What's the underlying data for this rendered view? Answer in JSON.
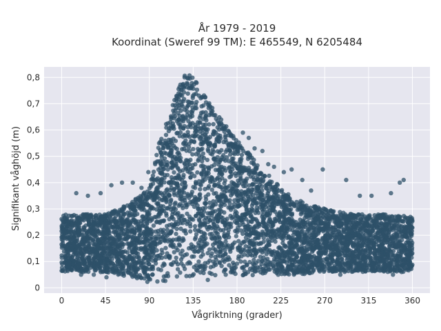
{
  "chart_data": {
    "type": "scatter",
    "title_line1": "År 1979 - 2019",
    "title_line2": "Koordinat (Sweref 99 TM): E 465549, N 6205484",
    "xlabel": "Vågriktning (grader)",
    "ylabel": "Signifikant våghöjd (m)",
    "xlim": [
      -18,
      378
    ],
    "ylim": [
      -0.02,
      0.84
    ],
    "grid": true,
    "legend": "none",
    "x_ticks": [
      0,
      45,
      90,
      135,
      180,
      225,
      270,
      315,
      360
    ],
    "x_tick_labels": [
      "0",
      "45",
      "90",
      "135",
      "180",
      "225",
      "270",
      "315",
      "360"
    ],
    "y_ticks": [
      0,
      0.1,
      0.2,
      0.3,
      0.4,
      0.5,
      0.6,
      0.7,
      0.8
    ],
    "y_tick_labels": [
      "0",
      "0,1",
      "0,2",
      "0,3",
      "0,4",
      "0,5",
      "0,6",
      "0,7",
      "0,8"
    ],
    "colors": {
      "marker": "#2e5068",
      "plot_bg": "#e6e6ef",
      "grid": "#ffffff"
    },
    "envelope": {
      "x": [
        0,
        20,
        45,
        70,
        90,
        100,
        110,
        120,
        125,
        130,
        135,
        150,
        165,
        180,
        195,
        210,
        225,
        245,
        270,
        300,
        330,
        360
      ],
      "ymax": [
        0.28,
        0.28,
        0.28,
        0.32,
        0.38,
        0.55,
        0.65,
        0.76,
        0.81,
        0.81,
        0.8,
        0.72,
        0.64,
        0.56,
        0.5,
        0.44,
        0.38,
        0.33,
        0.3,
        0.28,
        0.28,
        0.27
      ],
      "ymin": [
        0.06,
        0.06,
        0.06,
        0.04,
        0.02,
        0.02,
        0.03,
        0.04,
        0.04,
        0.04,
        0.04,
        0.04,
        0.04,
        0.04,
        0.04,
        0.05,
        0.05,
        0.05,
        0.06,
        0.06,
        0.06,
        0.06
      ]
    },
    "outliers": [
      [
        15,
        0.36
      ],
      [
        27,
        0.35
      ],
      [
        40,
        0.36
      ],
      [
        51,
        0.39
      ],
      [
        62,
        0.4
      ],
      [
        73,
        0.4
      ],
      [
        82,
        0.38
      ],
      [
        89,
        0.44
      ],
      [
        96,
        0.47
      ],
      [
        100,
        0.55
      ],
      [
        106,
        0.55
      ],
      [
        186,
        0.59
      ],
      [
        192,
        0.57
      ],
      [
        198,
        0.53
      ],
      [
        206,
        0.52
      ],
      [
        212,
        0.47
      ],
      [
        218,
        0.46
      ],
      [
        228,
        0.44
      ],
      [
        236,
        0.45
      ],
      [
        247,
        0.41
      ],
      [
        256,
        0.37
      ],
      [
        268,
        0.45
      ],
      [
        292,
        0.41
      ],
      [
        306,
        0.35
      ],
      [
        318,
        0.35
      ],
      [
        338,
        0.36
      ],
      [
        347,
        0.4
      ],
      [
        351,
        0.41
      ],
      [
        20,
        0.05
      ],
      [
        33,
        0.05
      ],
      [
        46,
        0.04
      ],
      [
        150,
        0.03
      ],
      [
        286,
        0.05
      ],
      [
        340,
        0.05
      ]
    ],
    "point_count": 5200,
    "seed": 7
  }
}
